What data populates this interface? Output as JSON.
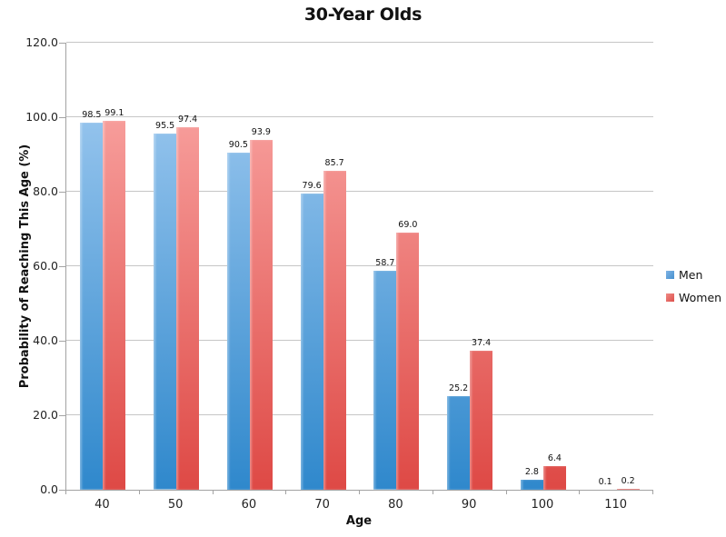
{
  "title": "30-Year Olds",
  "chart_data": {
    "type": "bar",
    "title": "30-Year Olds",
    "xlabel": "Age",
    "ylabel": "Probability of Reaching This Age (%)",
    "categories": [
      "40",
      "50",
      "60",
      "70",
      "80",
      "90",
      "100",
      "110"
    ],
    "series": [
      {
        "name": "Men",
        "values": [
          98.5,
          95.5,
          90.5,
          79.6,
          58.7,
          25.2,
          2.8,
          0.1
        ],
        "color_top": "#a8cff3",
        "color_bottom": "#2f88cc"
      },
      {
        "name": "Women",
        "values": [
          99.1,
          97.4,
          93.9,
          85.7,
          69.0,
          37.4,
          6.4,
          0.2
        ],
        "color_top": "#fcaeac",
        "color_bottom": "#de4945"
      }
    ],
    "ylim": [
      0,
      120
    ],
    "ytick_step": 20,
    "ytick_labels": [
      "0.0",
      "20.0",
      "40.0",
      "60.0",
      "80.0",
      "100.0",
      "120.0"
    ],
    "grid": true,
    "legend_position": "right",
    "value_labels_shown": true,
    "colors": {
      "gridline": "#c6c6c6",
      "axis": "#a3a3a3",
      "men_legend_top": "#7fb3e4",
      "men_legend_bottom": "#4690cf",
      "women_legend_top": "#ef8b86",
      "women_legend_bottom": "#dd4f4b"
    }
  }
}
